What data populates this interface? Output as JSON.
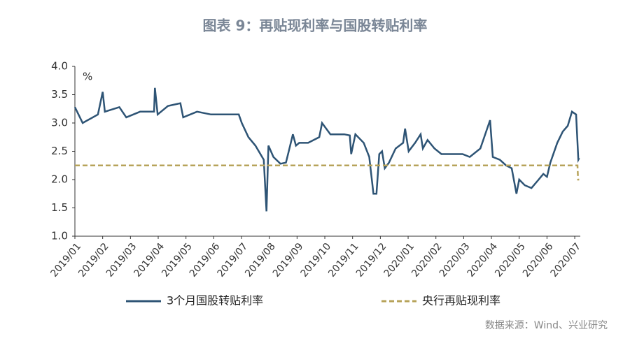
{
  "chart_data": {
    "type": "line",
    "title": "图表 9：再贴现利率与国股转贴利率",
    "y_unit": "%",
    "source": "数据来源：Wind、兴业研究",
    "xlim": [
      0,
      18.2
    ],
    "xticks": [
      {
        "value": 0,
        "label": "2019/01"
      },
      {
        "value": 1,
        "label": "2019/02"
      },
      {
        "value": 2,
        "label": "2019/03"
      },
      {
        "value": 3,
        "label": "2019/04"
      },
      {
        "value": 4,
        "label": "2019/05"
      },
      {
        "value": 5,
        "label": "2019/06"
      },
      {
        "value": 6,
        "label": "2019/07"
      },
      {
        "value": 7,
        "label": "2019/08"
      },
      {
        "value": 8,
        "label": "2019/09"
      },
      {
        "value": 9,
        "label": "2019/10"
      },
      {
        "value": 10,
        "label": "2019/11"
      },
      {
        "value": 11,
        "label": "2019/12"
      },
      {
        "value": 12,
        "label": "2020/01"
      },
      {
        "value": 13,
        "label": "2020/02"
      },
      {
        "value": 14,
        "label": "2020/03"
      },
      {
        "value": 15,
        "label": "2020/04"
      },
      {
        "value": 16,
        "label": "2020/05"
      },
      {
        "value": 17,
        "label": "2020/06"
      },
      {
        "value": 18,
        "label": "2020/07"
      }
    ],
    "ylim": [
      1.0,
      4.0
    ],
    "yticks": [
      {
        "value": 1.0,
        "label": "1.0"
      },
      1.5,
      {
        "value": 2.0,
        "label": "2.0"
      },
      2.5,
      {
        "value": 3.0,
        "label": "3.0"
      },
      3.5,
      {
        "value": 4.0,
        "label": "4.0"
      }
    ],
    "series": [
      {
        "name": "3个月国股转贴利率",
        "color": "#2e5475",
        "dash": false,
        "x": [
          0,
          0.28,
          0.83,
          1.0,
          1.08,
          1.6,
          1.85,
          2.35,
          2.85,
          2.88,
          2.98,
          3.35,
          3.8,
          3.9,
          4.4,
          4.9,
          5.6,
          5.9,
          6.01,
          6.25,
          6.5,
          6.8,
          6.9,
          6.97,
          7.15,
          7.4,
          7.6,
          7.7,
          7.85,
          7.96,
          8.08,
          8.4,
          8.8,
          8.9,
          9.2,
          9.7,
          9.9,
          9.95,
          10.1,
          10.4,
          10.6,
          10.75,
          10.86,
          10.96,
          11.06,
          11.16,
          11.31,
          11.55,
          11.82,
          11.89,
          12.02,
          12.25,
          12.45,
          12.53,
          12.7,
          12.95,
          13.2,
          13.46,
          13.96,
          14.22,
          14.6,
          14.95,
          15.05,
          15.3,
          15.53,
          15.73,
          15.9,
          16.0,
          16.2,
          16.44,
          16.7,
          16.87,
          17.0,
          17.12,
          17.37,
          17.57,
          17.75,
          17.9,
          18.05,
          18.13,
          18.16
        ],
        "values": [
          3.28,
          3.0,
          3.15,
          3.55,
          3.2,
          3.28,
          3.1,
          3.2,
          3.2,
          3.62,
          3.15,
          3.3,
          3.35,
          3.1,
          3.2,
          3.15,
          3.15,
          3.15,
          3.0,
          2.75,
          2.6,
          2.35,
          1.44,
          2.6,
          2.4,
          2.28,
          2.3,
          2.5,
          2.8,
          2.6,
          2.65,
          2.65,
          2.75,
          3.0,
          2.8,
          2.8,
          2.78,
          2.45,
          2.8,
          2.65,
          2.4,
          1.75,
          1.75,
          2.45,
          2.5,
          2.2,
          2.3,
          2.55,
          2.65,
          2.9,
          2.5,
          2.65,
          2.8,
          2.55,
          2.7,
          2.55,
          2.45,
          2.45,
          2.45,
          2.4,
          2.55,
          3.05,
          2.4,
          2.35,
          2.25,
          2.2,
          1.75,
          2.0,
          1.9,
          1.85,
          2.0,
          2.1,
          2.05,
          2.3,
          2.65,
          2.85,
          2.95,
          3.2,
          3.15,
          2.35,
          2.38
        ]
      },
      {
        "name": "央行再贴现利率",
        "color": "#b7a35a",
        "dash": true,
        "x": [
          0,
          18.1,
          18.12,
          18.16
        ],
        "values": [
          2.25,
          2.25,
          2.0,
          2.0
        ]
      }
    ]
  }
}
